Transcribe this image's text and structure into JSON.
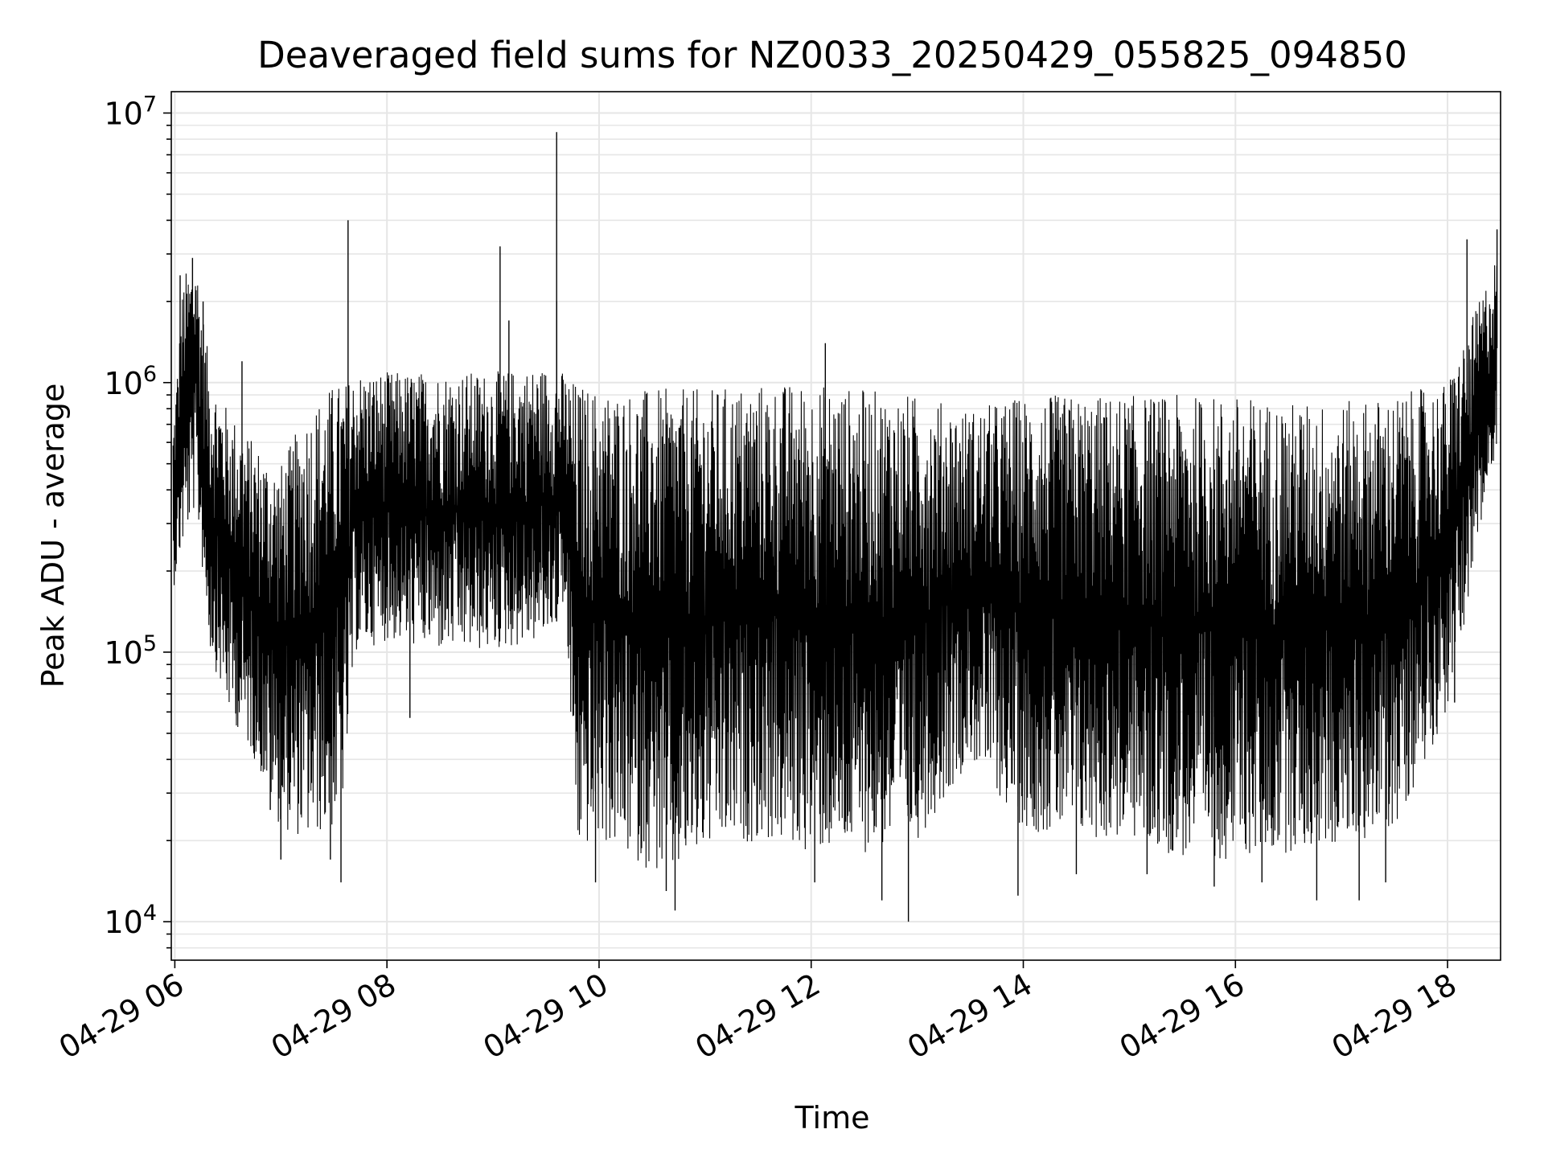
{
  "chart_data": {
    "type": "line",
    "title": "Deaveraged field sums for NZ0033_20250429_055825_094850",
    "xlabel": "Time",
    "ylabel": "Peak ADU - average",
    "x_scale": "time",
    "y_scale": "log",
    "xlim": [
      "2025-04-29 05:58",
      "2025-04-29 18:30"
    ],
    "ylim": [
      7200,
      12000000
    ],
    "grid": true,
    "line_color": "#000000",
    "grid_color": "#e6e6e6",
    "x_ticks": [
      {
        "value": "2025-04-29 06:00",
        "label": "04-29 06"
      },
      {
        "value": "2025-04-29 08:00",
        "label": "04-29 08"
      },
      {
        "value": "2025-04-29 10:00",
        "label": "04-29 10"
      },
      {
        "value": "2025-04-29 12:00",
        "label": "04-29 12"
      },
      {
        "value": "2025-04-29 14:00",
        "label": "04-29 14"
      },
      {
        "value": "2025-04-29 16:00",
        "label": "04-29 16"
      },
      {
        "value": "2025-04-29 18:00",
        "label": "04-29 18"
      }
    ],
    "y_ticks": [
      {
        "value": 10000,
        "base": "10",
        "exp": "4"
      },
      {
        "value": 100000,
        "base": "10",
        "exp": "5"
      },
      {
        "value": 1000000,
        "base": "10",
        "exp": "6"
      },
      {
        "value": 10000000,
        "base": "10",
        "exp": "7"
      }
    ],
    "series": [
      {
        "envelope": [
          {
            "t": "2025-04-29 05:59",
            "low": 170000,
            "high": 700000
          },
          {
            "t": "2025-04-29 06:05",
            "low": 250000,
            "high": 2500000
          },
          {
            "t": "2025-04-29 06:12",
            "low": 350000,
            "high": 3000000
          },
          {
            "t": "2025-04-29 06:20",
            "low": 100000,
            "high": 1100000
          },
          {
            "t": "2025-04-29 06:30",
            "low": 60000,
            "high": 800000
          },
          {
            "t": "2025-04-29 06:45",
            "low": 40000,
            "high": 600000
          },
          {
            "t": "2025-04-29 07:00",
            "low": 22000,
            "high": 500000
          },
          {
            "t": "2025-04-29 07:15",
            "low": 20000,
            "high": 800000
          },
          {
            "t": "2025-04-29 07:30",
            "low": 22000,
            "high": 1000000
          },
          {
            "t": "2025-04-29 07:36",
            "low": 30000,
            "high": 1000000
          },
          {
            "t": "2025-04-29 07:42",
            "low": 100000,
            "high": 1100000
          },
          {
            "t": "2025-04-29 08:00",
            "low": 110000,
            "high": 1100000
          },
          {
            "t": "2025-04-29 08:30",
            "low": 100000,
            "high": 1100000
          },
          {
            "t": "2025-04-29 09:00",
            "low": 100000,
            "high": 1100000
          },
          {
            "t": "2025-04-29 09:30",
            "low": 110000,
            "high": 1150000
          },
          {
            "t": "2025-04-29 09:40",
            "low": 150000,
            "high": 1100000
          },
          {
            "t": "2025-04-29 09:48",
            "low": 18000,
            "high": 1000000
          },
          {
            "t": "2025-04-29 10:00",
            "low": 20000,
            "high": 950000
          },
          {
            "t": "2025-04-29 10:40",
            "low": 14000,
            "high": 950000
          },
          {
            "t": "2025-04-29 11:00",
            "low": 18000,
            "high": 950000
          },
          {
            "t": "2025-04-29 11:30",
            "low": 20000,
            "high": 1000000
          },
          {
            "t": "2025-04-29 12:00",
            "low": 18000,
            "high": 1000000
          },
          {
            "t": "2025-04-29 12:30",
            "low": 18000,
            "high": 950000
          },
          {
            "t": "2025-04-29 13:00",
            "low": 20000,
            "high": 900000
          },
          {
            "t": "2025-04-29 13:30",
            "low": 40000,
            "high": 800000
          },
          {
            "t": "2025-04-29 14:00",
            "low": 22000,
            "high": 900000
          },
          {
            "t": "2025-04-29 14:30",
            "low": 20000,
            "high": 900000
          },
          {
            "t": "2025-04-29 15:00",
            "low": 20000,
            "high": 900000
          },
          {
            "t": "2025-04-29 15:30",
            "low": 17000,
            "high": 900000
          },
          {
            "t": "2025-04-29 16:00",
            "low": 17000,
            "high": 900000
          },
          {
            "t": "2025-04-29 16:30",
            "low": 18000,
            "high": 850000
          },
          {
            "t": "2025-04-29 17:00",
            "low": 19000,
            "high": 850000
          },
          {
            "t": "2025-04-29 17:30",
            "low": 22000,
            "high": 900000
          },
          {
            "t": "2025-04-29 18:00",
            "low": 60000,
            "high": 1000000
          },
          {
            "t": "2025-04-29 18:15",
            "low": 200000,
            "high": 1800000
          },
          {
            "t": "2025-04-29 18:28",
            "low": 600000,
            "high": 3000000
          }
        ],
        "spikes": [
          {
            "t": "2025-04-29 06:03",
            "value": 2500000
          },
          {
            "t": "2025-04-29 06:10",
            "value": 2900000
          },
          {
            "t": "2025-04-29 06:12",
            "value": 2200000
          },
          {
            "t": "2025-04-29 06:16",
            "value": 2000000
          },
          {
            "t": "2025-04-29 06:38",
            "value": 1200000
          },
          {
            "t": "2025-04-29 07:38",
            "value": 4000000
          },
          {
            "t": "2025-04-29 09:04",
            "value": 3200000
          },
          {
            "t": "2025-04-29 09:09",
            "value": 1700000
          },
          {
            "t": "2025-04-29 09:36",
            "value": 8500000
          },
          {
            "t": "2025-04-29 09:36",
            "value": 2000000
          },
          {
            "t": "2025-04-29 12:08",
            "value": 1400000
          },
          {
            "t": "2025-04-29 18:11",
            "value": 3400000
          },
          {
            "t": "2025-04-29 18:28",
            "value": 3700000
          }
        ],
        "dips": [
          {
            "t": "2025-04-29 06:54",
            "value": 26000
          },
          {
            "t": "2025-04-29 07:00",
            "value": 17000
          },
          {
            "t": "2025-04-29 07:28",
            "value": 17000
          },
          {
            "t": "2025-04-29 07:34",
            "value": 14000
          },
          {
            "t": "2025-04-29 08:13",
            "value": 57000
          },
          {
            "t": "2025-04-29 09:36",
            "value": 130000
          },
          {
            "t": "2025-04-29 09:58",
            "value": 14000
          },
          {
            "t": "2025-04-29 10:38",
            "value": 13000
          },
          {
            "t": "2025-04-29 10:43",
            "value": 11000
          },
          {
            "t": "2025-04-29 12:02",
            "value": 14000
          },
          {
            "t": "2025-04-29 12:40",
            "value": 12000
          },
          {
            "t": "2025-04-29 12:55",
            "value": 10000
          },
          {
            "t": "2025-04-29 13:57",
            "value": 12500
          },
          {
            "t": "2025-04-29 14:30",
            "value": 15000
          },
          {
            "t": "2025-04-29 15:10",
            "value": 15000
          },
          {
            "t": "2025-04-29 15:48",
            "value": 13500
          },
          {
            "t": "2025-04-29 16:15",
            "value": 14000
          },
          {
            "t": "2025-04-29 16:46",
            "value": 12000
          },
          {
            "t": "2025-04-29 17:10",
            "value": 12000
          },
          {
            "t": "2025-04-29 17:25",
            "value": 14000
          },
          {
            "t": "2025-04-29 18:04",
            "value": 65000
          }
        ]
      }
    ]
  }
}
